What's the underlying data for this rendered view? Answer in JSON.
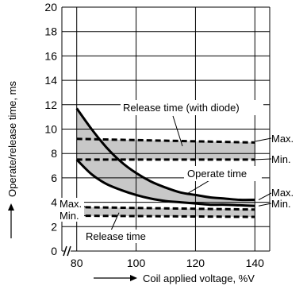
{
  "chart_data": {
    "type": "line",
    "title": "",
    "xlabel": "Coil applied voltage, %V",
    "ylabel": "Operate/release time, ms",
    "xlim": [
      75,
      145
    ],
    "ylim": [
      0,
      20
    ],
    "x_ticks": [
      80,
      100,
      120,
      140
    ],
    "y_ticks": [
      0,
      2,
      4,
      6,
      8,
      10,
      12,
      14,
      16,
      18,
      20
    ],
    "grid": true,
    "series": [
      {
        "name": "Release time (with diode)",
        "x": [
          80,
          140
        ],
        "max": [
          9.2,
          8.9
        ],
        "min": [
          7.5,
          7.5
        ]
      },
      {
        "name": "Operate time",
        "x": [
          80,
          85,
          90,
          95,
          100,
          105,
          110,
          115,
          120,
          125,
          130,
          135,
          140
        ],
        "max": [
          11.7,
          10.0,
          8.5,
          7.3,
          6.4,
          5.7,
          5.2,
          4.8,
          4.6,
          4.4,
          4.3,
          4.2,
          4.2
        ],
        "min": [
          7.5,
          6.3,
          5.5,
          5.0,
          4.6,
          4.3,
          4.1,
          4.0,
          3.9,
          3.8,
          3.8,
          3.75,
          3.7
        ]
      },
      {
        "name": "Release time",
        "x": [
          80,
          140
        ],
        "max": [
          3.6,
          3.4
        ],
        "min": [
          2.9,
          2.8
        ]
      }
    ],
    "annotations": {
      "max": "Max.",
      "min": "Min."
    }
  }
}
